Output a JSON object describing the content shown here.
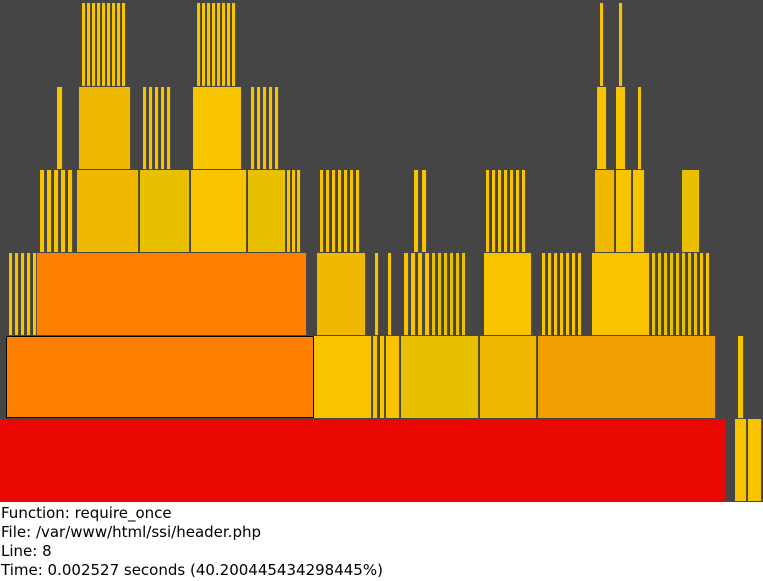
{
  "info": {
    "function_label": "Function:",
    "function_value": "require_once",
    "file_label": "File:",
    "file_value": "/var/www/html/ssi/header.php",
    "line_label": "Line:",
    "line_value": "8",
    "time_label": "Time:",
    "time_value": "0.002527 seconds (40.200445434298445%)"
  },
  "colors": {
    "background": "#454545",
    "root": "#e80800",
    "hot": "#ff8000",
    "warm": "#f0a000",
    "mid": "#f0b800",
    "yellow": "#f8c400",
    "pale": "#e8c000"
  }
}
